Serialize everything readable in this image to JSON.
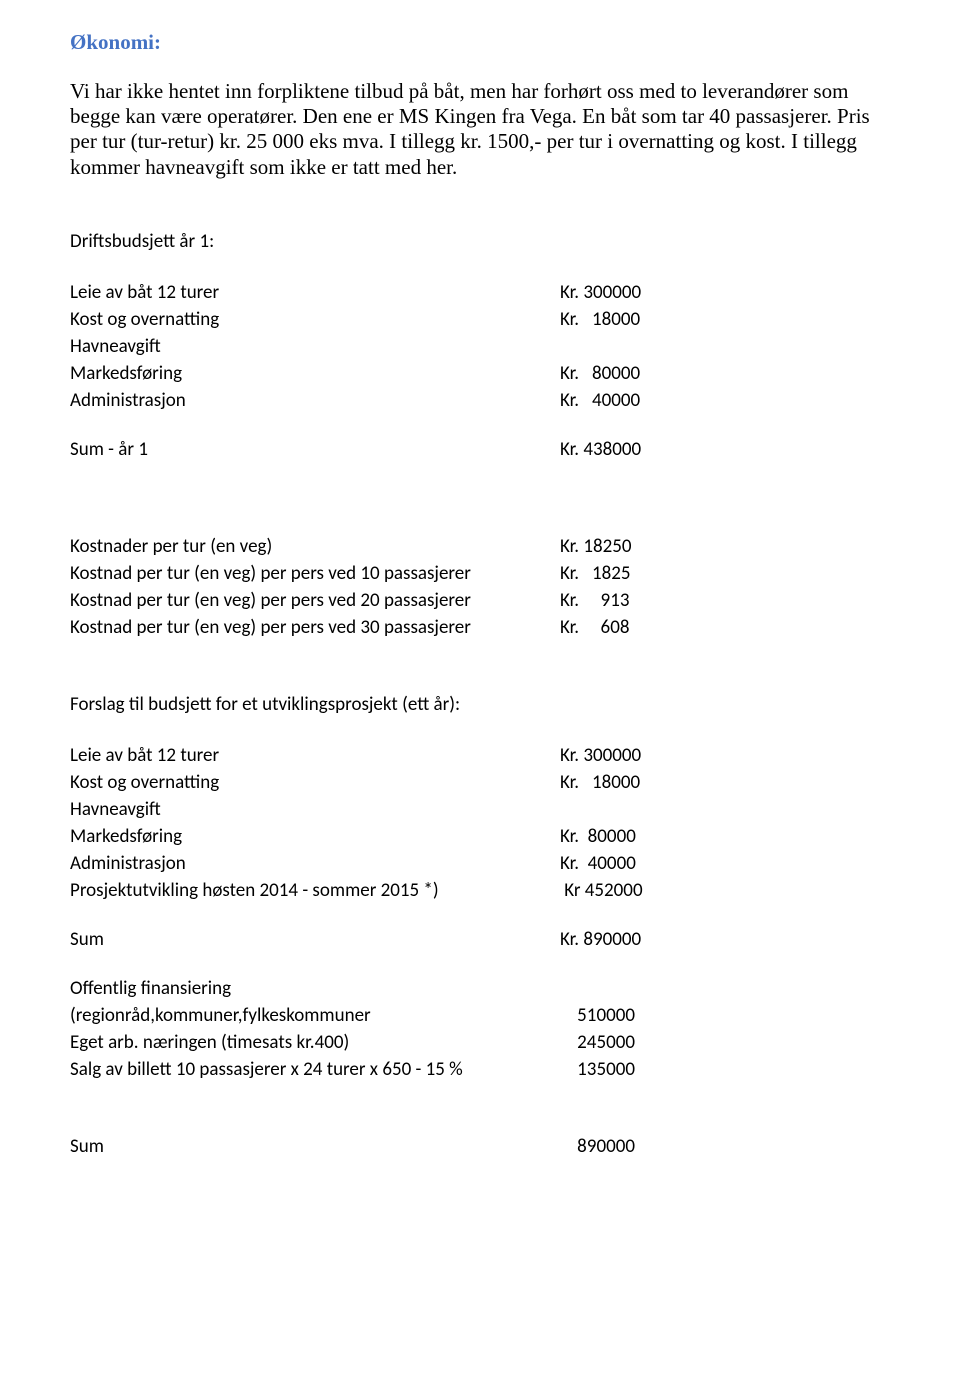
{
  "heading": "Økonomi:",
  "intro_para": "Vi har ikke hentet inn forpliktene tilbud på båt, men har forhørt oss med to leverandører som begge kan være operatører. Den ene er MS Kingen fra Vega. En båt som tar 40 passasjerer. Pris per tur (tur-retur) kr. 25 000 eks mva. I tillegg kr. 1500,- per tur i overnatting og kost. I tillegg kommer havneavgift som ikke er tatt med her.",
  "budget1": {
    "title": "Driftsbudsjett år 1:",
    "rows": [
      {
        "label": "Leie av båt 12 turer",
        "value": "Kr. 300000"
      },
      {
        "label": "Kost og overnatting",
        "value": "Kr.   18000"
      },
      {
        "label": "Havneavgift",
        "value": ""
      },
      {
        "label": "Markedsføring",
        "value": "Kr.   80000"
      },
      {
        "label": "Administrasjon",
        "value": "Kr.   40000"
      }
    ],
    "sum_label": "Sum  - år 1",
    "sum_value": "Kr. 438000"
  },
  "cost_per_trip": {
    "rows": [
      {
        "label": "Kostnader per tur (en veg)",
        "value": "Kr. 18250"
      },
      {
        "label": "Kostnad per tur (en veg) per pers ved 10 passasjerer",
        "value": "Kr.   1825"
      },
      {
        "label": "Kostnad per tur (en veg) per pers ved 20 passasjerer",
        "value": "Kr.     913"
      },
      {
        "label": "Kostnad per tur (en veg) per pers ved 30 passasjerer",
        "value": "Kr.     608"
      }
    ]
  },
  "budget2": {
    "title": "Forslag til budsjett for et utviklingsprosjekt (ett år):",
    "rows": [
      {
        "label": "Leie av båt 12 turer",
        "value": "Kr. 300000"
      },
      {
        "label": "Kost og overnatting",
        "value": "Kr.   18000"
      },
      {
        "label": "Havneavgift",
        "value": ""
      },
      {
        "label": "Markedsføring",
        "value": "Kr.  80000"
      },
      {
        "label": "Administrasjon",
        "value": "Kr.  40000"
      },
      {
        "label": "Prosjektutvikling høsten 2014 - sommer 2015 *)",
        "value": " Kr 452000"
      }
    ],
    "sum_label": "Sum",
    "sum_value": "Kr. 890000"
  },
  "financing": {
    "rows": [
      {
        "label": "Offentlig finansiering",
        "value": ""
      },
      {
        "label": "(regionråd,kommuner,fylkeskommuner",
        "value": "    510000"
      },
      {
        "label": "Eget arb. næringen (timesats kr.400)",
        "value": "    245000"
      },
      {
        "label": "Salg av billett 10 passasjerer x 24 turer x 650 - 15 %",
        "value": "    135000"
      }
    ],
    "sum_label": "Sum",
    "sum_value": "    890000"
  }
}
